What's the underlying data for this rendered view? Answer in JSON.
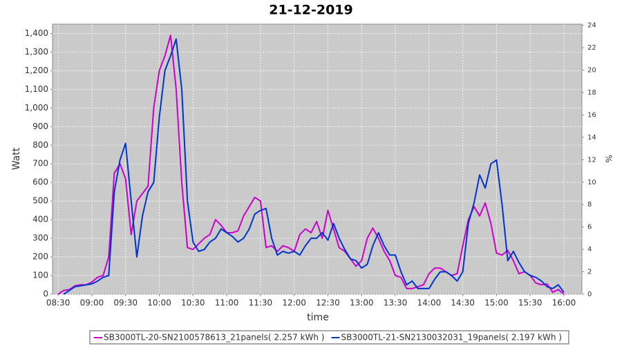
{
  "chart_data": {
    "type": "line",
    "title": "21-12-2019",
    "x_label": "time",
    "y_label": "Watt",
    "y2_label": "%",
    "x": [
      "08:30",
      "08:35",
      "08:40",
      "08:45",
      "08:50",
      "08:55",
      "09:00",
      "09:05",
      "09:10",
      "09:15",
      "09:20",
      "09:25",
      "09:30",
      "09:35",
      "09:40",
      "09:45",
      "09:50",
      "09:55",
      "10:00",
      "10:05",
      "10:10",
      "10:15",
      "10:20",
      "10:25",
      "10:30",
      "10:35",
      "10:40",
      "10:45",
      "10:50",
      "10:55",
      "11:00",
      "11:05",
      "11:10",
      "11:15",
      "11:20",
      "11:25",
      "11:30",
      "11:35",
      "11:40",
      "11:45",
      "11:50",
      "11:55",
      "12:00",
      "12:05",
      "12:10",
      "12:15",
      "12:20",
      "12:25",
      "12:30",
      "12:35",
      "12:40",
      "12:45",
      "12:50",
      "12:55",
      "13:00",
      "13:05",
      "13:10",
      "13:15",
      "13:20",
      "13:25",
      "13:30",
      "13:35",
      "13:40",
      "13:45",
      "13:50",
      "13:55",
      "14:00",
      "14:05",
      "14:10",
      "14:15",
      "14:20",
      "14:25",
      "14:30",
      "14:35",
      "14:40",
      "14:45",
      "14:50",
      "14:55",
      "15:00",
      "15:05",
      "15:10",
      "15:15",
      "15:20",
      "15:25",
      "15:30",
      "15:35",
      "15:40",
      "15:45",
      "15:50",
      "15:55",
      "16:00"
    ],
    "series": [
      {
        "name": "SB3000TL-20-SN2100578613_21panels( 2.257 kWh )",
        "color": "#cc00cc",
        "values": [
          0,
          20,
          25,
          45,
          50,
          50,
          65,
          90,
          100,
          200,
          650,
          700,
          620,
          320,
          500,
          540,
          580,
          1000,
          1200,
          1280,
          1390,
          1100,
          600,
          250,
          240,
          270,
          300,
          320,
          400,
          370,
          330,
          330,
          340,
          420,
          470,
          520,
          500,
          250,
          260,
          230,
          260,
          250,
          230,
          320,
          350,
          330,
          390,
          300,
          450,
          350,
          250,
          230,
          190,
          150,
          180,
          300,
          355,
          300,
          230,
          180,
          100,
          90,
          30,
          30,
          40,
          50,
          110,
          140,
          140,
          120,
          100,
          110,
          260,
          400,
          470,
          420,
          490,
          380,
          220,
          210,
          235,
          180,
          110,
          120,
          100,
          60,
          50,
          55,
          10,
          25,
          0
        ]
      },
      {
        "name": "SB3000TL-21-SN2130032031_19panels( 2.197 kWh )",
        "color": "#0033cc",
        "values": [
          null,
          0,
          20,
          40,
          45,
          50,
          55,
          70,
          90,
          100,
          550,
          720,
          810,
          500,
          200,
          420,
          550,
          600,
          950,
          1200,
          1280,
          1370,
          1100,
          500,
          280,
          230,
          240,
          280,
          300,
          350,
          330,
          310,
          280,
          300,
          350,
          430,
          450,
          460,
          300,
          210,
          230,
          220,
          230,
          210,
          260,
          300,
          300,
          330,
          290,
          380,
          300,
          240,
          190,
          180,
          140,
          160,
          260,
          330,
          260,
          210,
          210,
          120,
          50,
          70,
          30,
          30,
          30,
          80,
          120,
          120,
          100,
          70,
          120,
          380,
          490,
          640,
          570,
          700,
          720,
          480,
          180,
          230,
          170,
          120,
          100,
          90,
          70,
          40,
          30,
          50,
          10
        ]
      }
    ],
    "xlim": [
      "08:25",
      "16:16"
    ],
    "xticks": [
      "08:30",
      "09:00",
      "09:30",
      "10:00",
      "10:30",
      "11:00",
      "11:30",
      "12:00",
      "12:30",
      "13:00",
      "13:30",
      "14:00",
      "14:30",
      "15:00",
      "15:30",
      "16:00"
    ],
    "ylim": [
      0,
      1450
    ],
    "yticks": [
      0,
      100,
      200,
      300,
      400,
      500,
      600,
      700,
      800,
      900,
      {
        "value": 1000,
        "label": "1,000"
      },
      {
        "value": 1100,
        "label": "1,100"
      },
      {
        "value": 1200,
        "label": "1,200"
      },
      {
        "value": 1300,
        "label": "1,300"
      },
      {
        "value": 1400,
        "label": "1,400"
      }
    ],
    "y2lim": [
      0,
      24.1
    ],
    "y2ticks": [
      0,
      2,
      4,
      6,
      8,
      10,
      12,
      14,
      16,
      18,
      20,
      22,
      24
    ],
    "grid": true,
    "legend": "bottom",
    "background": "#cacaca"
  }
}
